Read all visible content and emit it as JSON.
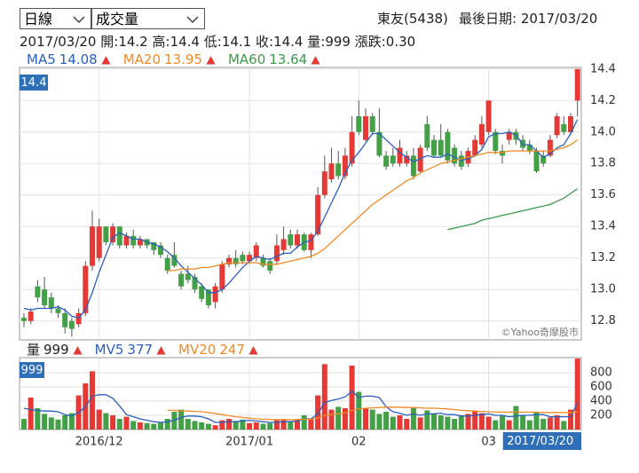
{
  "controls": [
    "日線",
    "成交量"
  ],
  "stock": "東友(5438)",
  "last_date_label": "最後日期:",
  "quote": [
    {
      "label": "開:",
      "value": 14.2
    },
    {
      "label": "高:",
      "value": 14.4
    },
    {
      "label": "低:",
      "value": 14.1
    },
    {
      "label": "收:",
      "value": 14.4
    },
    {
      "label": "量:",
      "value": 999
    },
    {
      "label": "漲跌:",
      "value": "0.30"
    }
  ],
  "watermark": "©Yahoo奇摩股市",
  "chart_data": [
    {
      "type": "candlestick",
      "categories": [
        null,
        null,
        null,
        null,
        null,
        null,
        null,
        null,
        null,
        null,
        null,
        "2016/12",
        null,
        null,
        null,
        null,
        null,
        null,
        null,
        null,
        null,
        null,
        null,
        null,
        null,
        null,
        null,
        null,
        null,
        null,
        null,
        null,
        null,
        "2017/01",
        null,
        null,
        null,
        null,
        null,
        null,
        null,
        null,
        null,
        null,
        null,
        null,
        null,
        null,
        null,
        "02",
        null,
        null,
        null,
        null,
        null,
        null,
        null,
        null,
        null,
        null,
        null,
        null,
        null,
        null,
        null,
        null,
        null,
        null,
        "03",
        null,
        null,
        null,
        null,
        null,
        null,
        null,
        null,
        null,
        null,
        null,
        null,
        "2017/03/20"
      ],
      "open": [
        12.82,
        12.8,
        13.02,
        13.0,
        12.95,
        12.88,
        12.85,
        12.8,
        12.78,
        12.85,
        13.15,
        13.2,
        13.4,
        13.3,
        13.4,
        13.28,
        13.34,
        13.28,
        13.32,
        13.3,
        13.28,
        13.2,
        13.22,
        13.1,
        13.1,
        13.08,
        13.02,
        13.0,
        12.92,
        13.0,
        13.16,
        13.2,
        13.22,
        13.18,
        13.2,
        13.2,
        13.18,
        13.18,
        13.25,
        13.35,
        13.28,
        13.35,
        13.25,
        13.35,
        13.6,
        13.7,
        13.8,
        13.72,
        13.8,
        14.1,
        13.95,
        14.1,
        14.0,
        13.85,
        13.85,
        13.8,
        13.8,
        13.85,
        13.75,
        14.05,
        13.95,
        13.95,
        14.0,
        13.9,
        13.85,
        13.8,
        13.85,
        13.92,
        14.0,
        14.0,
        13.88,
        13.95,
        14.0,
        13.95,
        13.92,
        13.88,
        13.85,
        13.85,
        13.98,
        14.05,
        14.0,
        14.2
      ],
      "high": [
        12.85,
        12.88,
        13.06,
        13.08,
        12.98,
        12.9,
        12.88,
        12.82,
        12.88,
        13.18,
        13.5,
        13.45,
        13.4,
        13.42,
        13.4,
        13.36,
        13.38,
        13.34,
        13.32,
        13.3,
        13.3,
        13.22,
        13.3,
        13.12,
        13.15,
        13.1,
        13.04,
        13.0,
        13.04,
        13.18,
        13.22,
        13.25,
        13.24,
        13.24,
        13.3,
        13.22,
        13.2,
        13.35,
        13.4,
        13.38,
        13.38,
        13.36,
        13.36,
        13.65,
        13.85,
        13.9,
        13.88,
        13.9,
        14.1,
        14.2,
        14.15,
        14.12,
        14.15,
        13.88,
        13.9,
        13.95,
        13.88,
        13.9,
        13.92,
        14.1,
        13.98,
        14.05,
        14.02,
        13.92,
        13.88,
        13.9,
        13.98,
        14.1,
        14.2,
        14.02,
        13.92,
        14.02,
        14.02,
        13.98,
        13.95,
        13.9,
        13.88,
        13.98,
        14.12,
        14.1,
        14.12,
        14.4
      ],
      "low": [
        12.76,
        12.78,
        12.92,
        12.88,
        12.85,
        12.82,
        12.72,
        12.7,
        12.76,
        12.83,
        13.12,
        13.18,
        13.28,
        13.28,
        13.26,
        13.26,
        13.26,
        13.26,
        13.26,
        13.22,
        13.2,
        13.1,
        13.14,
        13.0,
        13.04,
        12.98,
        12.92,
        12.88,
        12.88,
        12.98,
        13.14,
        13.14,
        13.16,
        13.16,
        13.18,
        13.14,
        13.1,
        13.16,
        13.22,
        13.26,
        13.26,
        13.24,
        13.2,
        13.34,
        13.58,
        13.68,
        13.7,
        13.7,
        13.78,
        13.98,
        13.94,
        13.98,
        13.84,
        13.76,
        13.78,
        13.78,
        13.78,
        13.7,
        13.74,
        13.88,
        13.84,
        13.84,
        13.8,
        13.78,
        13.76,
        13.78,
        13.84,
        13.9,
        13.98,
        13.86,
        13.8,
        13.92,
        13.92,
        13.88,
        13.86,
        13.74,
        13.78,
        13.84,
        13.96,
        13.98,
        13.98,
        14.1
      ],
      "close": [
        12.8,
        12.86,
        12.95,
        12.9,
        12.88,
        12.85,
        12.76,
        12.75,
        12.85,
        13.15,
        13.4,
        13.4,
        13.3,
        13.4,
        13.28,
        13.34,
        13.28,
        13.32,
        13.28,
        13.25,
        13.22,
        13.12,
        13.15,
        13.02,
        13.06,
        13.0,
        12.94,
        12.9,
        13.02,
        13.16,
        13.2,
        13.16,
        13.18,
        13.22,
        13.28,
        13.15,
        13.12,
        13.28,
        13.32,
        13.28,
        13.35,
        13.25,
        13.35,
        13.6,
        13.75,
        13.8,
        13.72,
        13.85,
        14.0,
        14.0,
        14.1,
        14.0,
        13.85,
        13.78,
        13.8,
        13.9,
        13.85,
        13.72,
        13.9,
        13.9,
        13.85,
        13.85,
        13.82,
        13.8,
        13.78,
        13.88,
        13.95,
        14.05,
        14.2,
        13.88,
        13.85,
        14.0,
        13.95,
        13.9,
        13.88,
        13.75,
        13.8,
        13.95,
        14.1,
        14.0,
        14.1,
        14.4
      ],
      "up_color": "#e53935",
      "down_color": "#43a047",
      "series": [
        {
          "name": "MA5",
          "color": "#2b5fbd",
          "values": [
            12.88,
            12.87,
            12.88,
            12.88,
            12.88,
            12.89,
            12.87,
            12.83,
            12.82,
            12.87,
            12.98,
            13.11,
            13.22,
            13.33,
            13.36,
            13.34,
            13.32,
            13.32,
            13.3,
            13.29,
            13.27,
            13.24,
            13.2,
            13.15,
            13.11,
            13.07,
            13.03,
            12.98,
            12.98,
            13.0,
            13.04,
            13.09,
            13.14,
            13.18,
            13.21,
            13.2,
            13.19,
            13.21,
            13.23,
            13.23,
            13.27,
            13.3,
            13.31,
            13.37,
            13.46,
            13.55,
            13.64,
            13.74,
            13.82,
            13.87,
            13.93,
            13.99,
            13.99,
            13.95,
            13.91,
            13.87,
            13.84,
            13.81,
            13.83,
            13.85,
            13.84,
            13.84,
            13.86,
            13.84,
            13.82,
            13.83,
            13.85,
            13.89,
            13.97,
            13.99,
            13.99,
            14.0,
            13.98,
            13.92,
            13.92,
            13.88,
            13.84,
            13.86,
            13.9,
            13.92,
            13.99,
            14.08
          ]
        },
        {
          "name": "MA20",
          "color": "#f08a24",
          "values": [
            null,
            null,
            null,
            null,
            null,
            null,
            null,
            null,
            null,
            null,
            null,
            null,
            null,
            null,
            null,
            null,
            null,
            null,
            null,
            null,
            null,
            13.12,
            13.12,
            13.13,
            13.13,
            13.13,
            13.14,
            13.14,
            13.15,
            13.16,
            13.17,
            13.17,
            13.17,
            13.17,
            13.17,
            13.16,
            13.16,
            13.16,
            13.17,
            13.18,
            13.19,
            13.2,
            13.21,
            13.23,
            13.26,
            13.3,
            13.34,
            13.38,
            13.42,
            13.46,
            13.5,
            13.54,
            13.57,
            13.6,
            13.63,
            13.66,
            13.69,
            13.71,
            13.74,
            13.76,
            13.78,
            13.8,
            13.81,
            13.82,
            13.83,
            13.84,
            13.85,
            13.86,
            13.87,
            13.87,
            13.87,
            13.88,
            13.88,
            13.88,
            13.88,
            13.88,
            13.88,
            13.88,
            13.89,
            13.9,
            13.92,
            13.95
          ]
        },
        {
          "name": "MA60",
          "color": "#3c9a4a",
          "values": [
            null,
            null,
            null,
            null,
            null,
            null,
            null,
            null,
            null,
            null,
            null,
            null,
            null,
            null,
            null,
            null,
            null,
            null,
            null,
            null,
            null,
            null,
            null,
            null,
            null,
            null,
            null,
            null,
            null,
            null,
            null,
            null,
            null,
            null,
            null,
            null,
            null,
            null,
            null,
            null,
            null,
            null,
            null,
            null,
            null,
            null,
            null,
            null,
            null,
            null,
            null,
            null,
            null,
            null,
            null,
            null,
            null,
            null,
            null,
            null,
            null,
            null,
            13.38,
            13.39,
            13.4,
            13.41,
            13.42,
            13.44,
            13.45,
            13.46,
            13.47,
            13.48,
            13.49,
            13.5,
            13.51,
            13.52,
            13.53,
            13.54,
            13.56,
            13.58,
            13.61,
            13.64
          ]
        }
      ],
      "ylim": [
        12.68,
        14.41
      ],
      "yticks": [
        12.8,
        {
          "value": 13,
          "label": "13.0"
        },
        13.2,
        13.4,
        13.6,
        13.8,
        {
          "value": 14,
          "label": "14.0"
        },
        14.2,
        14.4
      ],
      "grid": true
    },
    {
      "type": "bar",
      "name": "量",
      "values": [
        150,
        450,
        300,
        220,
        170,
        140,
        200,
        230,
        480,
        650,
        820,
        280,
        230,
        200,
        150,
        180,
        120,
        100,
        90,
        80,
        100,
        150,
        250,
        280,
        150,
        120,
        100,
        80,
        60,
        130,
        150,
        120,
        140,
        90,
        100,
        80,
        90,
        130,
        140,
        120,
        140,
        200,
        150,
        480,
        920,
        280,
        320,
        300,
        900,
        530,
        300,
        280,
        220,
        250,
        180,
        200,
        150,
        300,
        170,
        270,
        230,
        200,
        180,
        150,
        200,
        220,
        260,
        230,
        180,
        130,
        200,
        130,
        330,
        200,
        130,
        250,
        150,
        170,
        200,
        120,
        280,
        999
      ],
      "series": [
        {
          "name": "MV5",
          "color": "#2b5fbd",
          "values": [
            300,
            280,
            270,
            260,
            260,
            250,
            210,
            190,
            240,
            320,
            470,
            490,
            490,
            440,
            330,
            210,
            180,
            150,
            130,
            110,
            100,
            110,
            130,
            170,
            190,
            190,
            180,
            150,
            100,
            100,
            110,
            110,
            120,
            130,
            120,
            110,
            100,
            100,
            110,
            110,
            120,
            150,
            150,
            220,
            380,
            410,
            430,
            460,
            540,
            450,
            470,
            470,
            450,
            320,
            250,
            230,
            200,
            220,
            200,
            220,
            220,
            230,
            210,
            210,
            190,
            190,
            200,
            210,
            220,
            200,
            200,
            180,
            190,
            200,
            200,
            210,
            210,
            180,
            180,
            180,
            180,
            377
          ]
        },
        {
          "name": "MV20",
          "color": "#f08a24",
          "values": [
            null,
            null,
            null,
            null,
            null,
            null,
            null,
            null,
            null,
            null,
            null,
            null,
            null,
            null,
            null,
            null,
            null,
            null,
            null,
            null,
            null,
            270,
            270,
            265,
            260,
            255,
            250,
            240,
            225,
            210,
            195,
            180,
            170,
            160,
            150,
            145,
            140,
            140,
            140,
            140,
            140,
            145,
            145,
            160,
            200,
            210,
            220,
            235,
            270,
            290,
            300,
            305,
            310,
            315,
            315,
            315,
            310,
            310,
            305,
            300,
            300,
            295,
            290,
            280,
            270,
            265,
            260,
            255,
            250,
            245,
            245,
            245,
            245,
            245,
            245,
            245,
            240,
            240,
            240,
            240,
            240,
            247
          ]
        }
      ],
      "ylim": [
        0,
        1012
      ],
      "yticks": [
        200,
        400,
        600,
        800
      ],
      "grid": true
    }
  ]
}
